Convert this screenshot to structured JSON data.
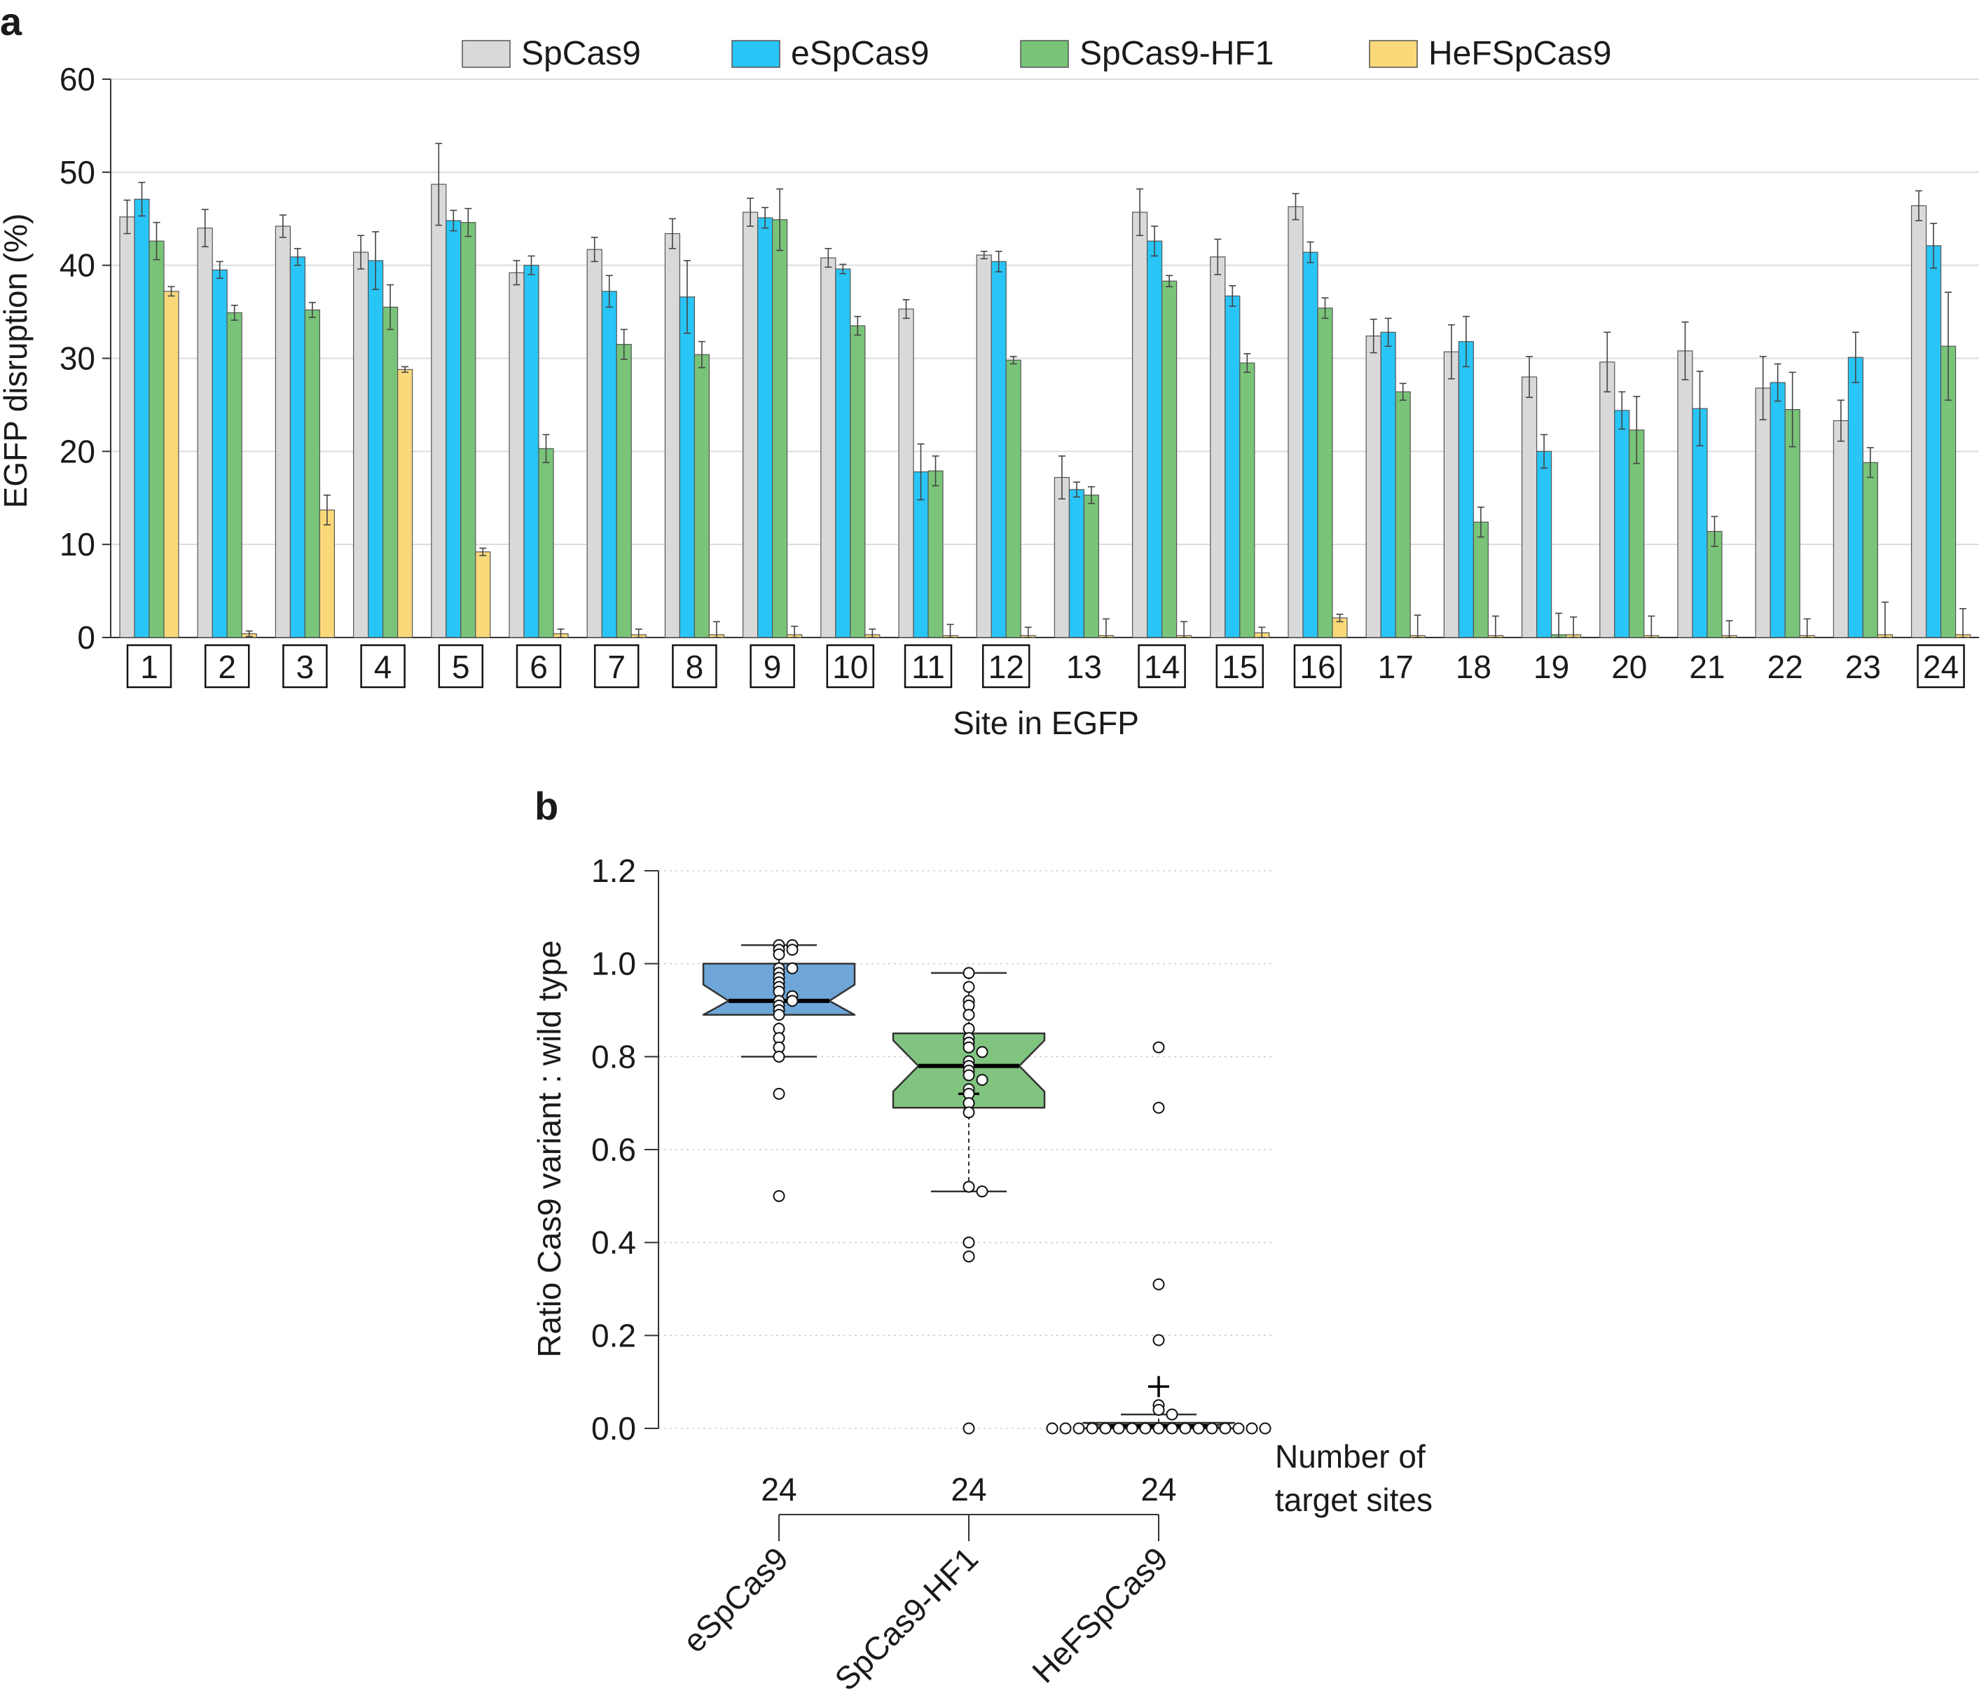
{
  "chart_data": [
    {
      "panel_label": "a",
      "type": "bar",
      "xlabel": "Site in EGFP",
      "ylabel": "EGFP disruption (%)",
      "ylim": [
        0,
        60
      ],
      "yticks": [
        "0",
        "10",
        "20",
        "30",
        "40",
        "50",
        "60"
      ],
      "grid": true,
      "legend": "top",
      "categories": [
        "1",
        "2",
        "3",
        "4",
        "5",
        "6",
        "7",
        "8",
        "9",
        "10",
        "11",
        "12",
        "13",
        "14",
        "15",
        "16",
        "17",
        "18",
        "19",
        "20",
        "21",
        "22",
        "23",
        "24"
      ],
      "boxed_sites": [
        "1",
        "2",
        "3",
        "4",
        "5",
        "6",
        "7",
        "8",
        "9",
        "10",
        "11",
        "12",
        "14",
        "15",
        "16",
        "24"
      ],
      "series": [
        {
          "name": "SpCas9",
          "color": "#d9d9d9",
          "values": [
            45.2,
            44.0,
            44.2,
            41.4,
            48.7,
            39.2,
            41.7,
            43.4,
            45.7,
            40.8,
            35.3,
            41.1,
            17.2,
            45.7,
            40.9,
            46.3,
            32.4,
            30.7,
            28.0,
            29.6,
            30.8,
            26.8,
            23.3,
            46.4
          ],
          "errors": [
            1.8,
            2.0,
            1.2,
            1.8,
            4.4,
            1.3,
            1.3,
            1.6,
            1.5,
            1.0,
            1.0,
            0.4,
            2.3,
            2.5,
            1.9,
            1.4,
            1.8,
            2.9,
            2.2,
            3.2,
            3.1,
            3.4,
            2.2,
            1.6
          ]
        },
        {
          "name": "eSpCas9",
          "color": "#29c5f6",
          "values": [
            47.1,
            39.5,
            40.9,
            40.5,
            44.8,
            40.0,
            37.2,
            36.6,
            45.1,
            39.6,
            17.8,
            40.4,
            15.9,
            42.6,
            36.7,
            41.4,
            32.8,
            31.8,
            20.0,
            24.4,
            24.6,
            27.4,
            30.1,
            42.1
          ],
          "errors": [
            1.8,
            0.9,
            0.9,
            3.1,
            1.1,
            1.0,
            1.7,
            3.9,
            1.1,
            0.5,
            3.0,
            1.1,
            0.8,
            1.6,
            1.1,
            1.1,
            1.5,
            2.7,
            1.8,
            2.0,
            4.0,
            2.0,
            2.7,
            2.4
          ]
        },
        {
          "name": "SpCas9-HF1",
          "color": "#79c479",
          "values": [
            42.6,
            34.9,
            35.2,
            35.5,
            44.6,
            20.3,
            31.5,
            30.4,
            44.9,
            33.5,
            17.9,
            29.8,
            15.3,
            38.3,
            29.5,
            35.4,
            26.4,
            12.4,
            0.3,
            22.3,
            11.4,
            24.5,
            18.8,
            31.3
          ],
          "errors": [
            2.0,
            0.8,
            0.8,
            2.4,
            1.5,
            1.5,
            1.6,
            1.4,
            3.3,
            1.0,
            1.6,
            0.4,
            0.9,
            0.6,
            1.0,
            1.1,
            0.9,
            1.6,
            2.3,
            3.6,
            1.6,
            4.0,
            1.6,
            5.8
          ]
        },
        {
          "name": "HeFSpCas9",
          "color": "#f9d97a",
          "values": [
            37.2,
            0.4,
            13.7,
            28.8,
            9.2,
            0.4,
            0.3,
            0.3,
            0.3,
            0.3,
            0.2,
            0.2,
            0.2,
            0.2,
            0.5,
            2.1,
            0.2,
            0.2,
            0.3,
            0.2,
            0.2,
            0.2,
            0.3,
            0.3
          ],
          "errors": [
            0.5,
            0.3,
            1.6,
            0.3,
            0.4,
            0.5,
            0.6,
            1.4,
            0.9,
            0.6,
            1.2,
            0.9,
            1.8,
            1.5,
            0.6,
            0.4,
            2.2,
            2.1,
            1.9,
            2.1,
            1.6,
            1.8,
            3.5,
            2.8
          ]
        }
      ]
    },
    {
      "panel_label": "b",
      "type": "box",
      "ylabel": "Ratio Cas9 variant : wild type",
      "ylim": [
        0,
        1.2
      ],
      "yticks": [
        "0.0",
        "0.2",
        "0.4",
        "0.6",
        "0.8",
        "1.0",
        "1.2"
      ],
      "grid": true,
      "counts_label": [
        "Number of",
        "target sites"
      ],
      "groups": [
        {
          "name": "eSpCas9",
          "n": "24",
          "color": "#6ea6d8",
          "q1": 0.89,
          "median": 0.92,
          "q3": 1.0,
          "notch": [
            0.89,
            0.955
          ],
          "mean": 0.92,
          "whisker_low": 0.8,
          "whisker_high": 1.04,
          "points": [
            1.04,
            1.03,
            1.04,
            1.03,
            1.02,
            0.99,
            0.98,
            0.97,
            0.99,
            0.96,
            0.95,
            0.94,
            0.93,
            0.92,
            0.92,
            0.91,
            0.9,
            0.89,
            0.86,
            0.84,
            0.82,
            0.8,
            0.72,
            0.5
          ]
        },
        {
          "name": "SpCas9-HF1",
          "n": "24",
          "color": "#80c480",
          "q1": 0.69,
          "median": 0.78,
          "q3": 0.85,
          "notch": [
            0.725,
            0.835
          ],
          "mean": 0.72,
          "whisker_low": 0.51,
          "whisker_high": 0.98,
          "points": [
            0.98,
            0.95,
            0.92,
            0.91,
            0.89,
            0.86,
            0.84,
            0.83,
            0.82,
            0.81,
            0.79,
            0.78,
            0.77,
            0.76,
            0.75,
            0.73,
            0.72,
            0.7,
            0.68,
            0.52,
            0.51,
            0.4,
            0.37,
            0.0
          ]
        },
        {
          "name": "HeFSpCas9",
          "n": "24",
          "color": "#f9d97a",
          "q1": 0.0,
          "median": 0.005,
          "q3": 0.012,
          "notch": [
            0.0,
            0.012
          ],
          "mean": 0.09,
          "whisker_low": 0.0,
          "whisker_high": 0.03,
          "points": [
            0.82,
            0.69,
            0.31,
            0.19,
            0.05,
            0.04,
            0.03,
            0.0,
            0.0,
            0.0,
            0.0,
            0.0,
            0.0,
            0.0,
            0.0,
            0.0,
            0.0,
            0.0,
            0.0,
            0.0,
            0.0,
            0.0,
            0.0,
            0.0
          ]
        }
      ]
    }
  ]
}
